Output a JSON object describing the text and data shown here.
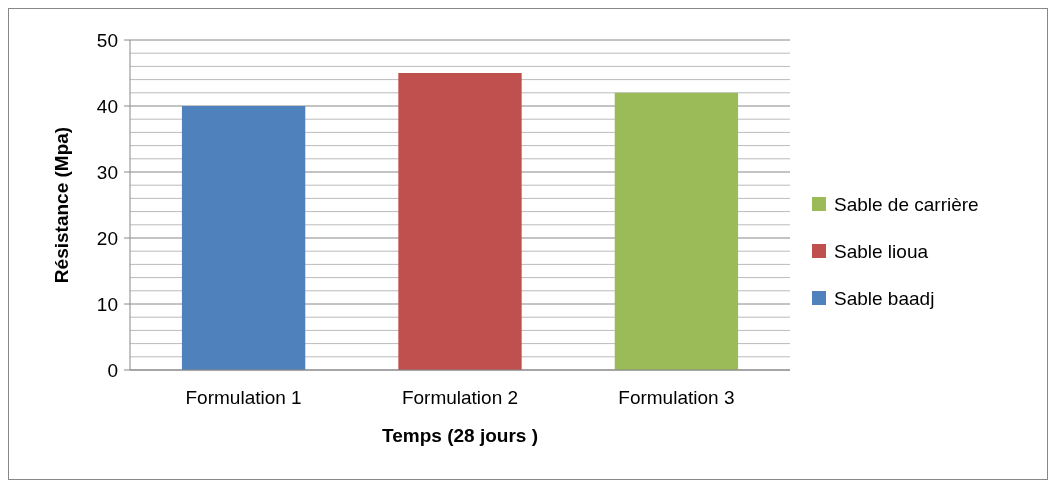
{
  "chart_data": {
    "type": "bar",
    "xlabel": "Temps (28 jours )",
    "ylabel": "Résistance (Mpa)",
    "categories": [
      "Formulation 1",
      "Formulation 2",
      "Formulation 3"
    ],
    "series": [
      {
        "name": "Sable baadj",
        "color": "#4f81bd",
        "values": [
          40,
          null,
          null
        ]
      },
      {
        "name": "Sable lioua",
        "color": "#c0504d",
        "values": [
          null,
          45,
          null
        ]
      },
      {
        "name": "Sable de carrière",
        "color": "#9bbb59",
        "values": [
          null,
          null,
          42
        ]
      }
    ],
    "stacked": true,
    "ylim": [
      0,
      50
    ],
    "yticks": [
      0,
      {
        "value": 2,
        "label": null
      },
      {
        "value": 4,
        "label": null
      },
      {
        "value": 6,
        "label": null
      },
      {
        "value": 8,
        "label": null
      },
      10,
      {
        "value": 12,
        "label": null
      },
      {
        "value": 14,
        "label": null
      },
      {
        "value": 16,
        "label": null
      },
      {
        "value": 18,
        "label": null
      },
      20,
      {
        "value": 22,
        "label": null
      },
      {
        "value": 24,
        "label": null
      },
      {
        "value": 26,
        "label": null
      },
      {
        "value": 28,
        "label": null
      },
      30,
      {
        "value": 32,
        "label": null
      },
      {
        "value": 34,
        "label": null
      },
      {
        "value": 36,
        "label": null
      },
      {
        "value": 38,
        "label": null
      },
      40,
      {
        "value": 42,
        "label": null
      },
      {
        "value": 44,
        "label": null
      },
      {
        "value": 46,
        "label": null
      },
      {
        "value": 48,
        "label": null
      },
      50
    ],
    "grid": "y",
    "legend": "right"
  }
}
